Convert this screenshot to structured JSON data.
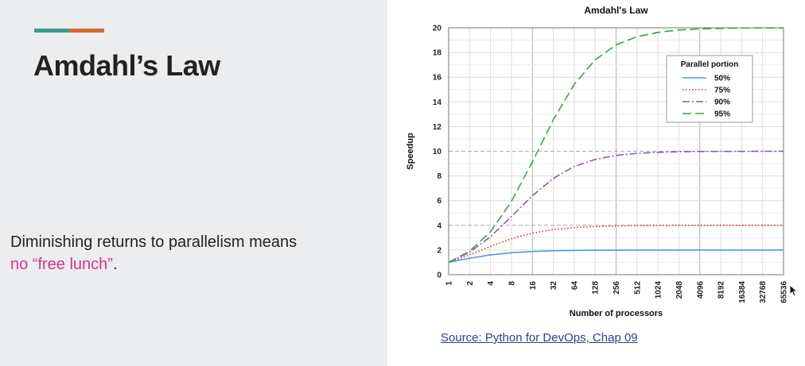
{
  "slide": {
    "title": "Amdahl’s Law",
    "body_lead": "Diminishing returns to parallelism means",
    "body_highlight": "no “free lunch”",
    "body_tail": ".",
    "accent_colors": [
      "#3d9b8c",
      "#d8662a"
    ],
    "highlight_color": "#d8328a"
  },
  "source_link": "Source:  Python for DevOps, Chap 09",
  "chart_data": {
    "type": "line",
    "title": "Amdahl's Law",
    "xlabel": "Number of processors",
    "ylabel": "Speedup",
    "x_scale": "log2",
    "x": [
      1,
      2,
      4,
      8,
      16,
      32,
      64,
      128,
      256,
      512,
      1024,
      2048,
      4096,
      8192,
      16384,
      32768,
      65536
    ],
    "x_tick_labels": [
      "1",
      "2",
      "4",
      "8",
      "16",
      "32",
      "64",
      "128",
      "256",
      "512",
      "1024",
      "2048",
      "4096",
      "8192",
      "16384",
      "32768",
      "65536"
    ],
    "y_ticks": [
      0,
      2,
      4,
      6,
      8,
      10,
      12,
      14,
      16,
      18,
      20
    ],
    "ylim": [
      0,
      20
    ],
    "grid": true,
    "legend_title": "Parallel portion",
    "legend_placement": "top-right",
    "series": [
      {
        "name": "50%",
        "style": "solid",
        "color": "#4a9fdb",
        "values": [
          1.0,
          1.33,
          1.6,
          1.78,
          1.88,
          1.94,
          1.97,
          1.98,
          1.99,
          2.0,
          2.0,
          2.0,
          2.0,
          2.0,
          2.0,
          2.0,
          2.0
        ]
      },
      {
        "name": "75%",
        "style": "dotted",
        "color": "#d9302c",
        "values": [
          1.0,
          1.6,
          2.29,
          2.91,
          3.37,
          3.66,
          3.82,
          3.91,
          3.95,
          3.98,
          3.99,
          4.0,
          4.0,
          4.0,
          4.0,
          4.0,
          4.0
        ]
      },
      {
        "name": "90%",
        "style": "dashdot",
        "color": "#8b5aa8",
        "values": [
          1.0,
          1.82,
          3.08,
          4.71,
          6.4,
          7.8,
          8.77,
          9.34,
          9.66,
          9.83,
          9.91,
          9.96,
          9.98,
          9.99,
          9.99,
          10.0,
          10.0
        ]
      },
      {
        "name": "95%",
        "style": "dashed",
        "color": "#3fa34d",
        "values": [
          1.0,
          1.9,
          3.48,
          5.93,
          9.14,
          12.55,
          15.42,
          17.41,
          18.62,
          19.28,
          19.63,
          19.82,
          19.91,
          19.95,
          19.98,
          19.99,
          19.99
        ]
      }
    ]
  }
}
